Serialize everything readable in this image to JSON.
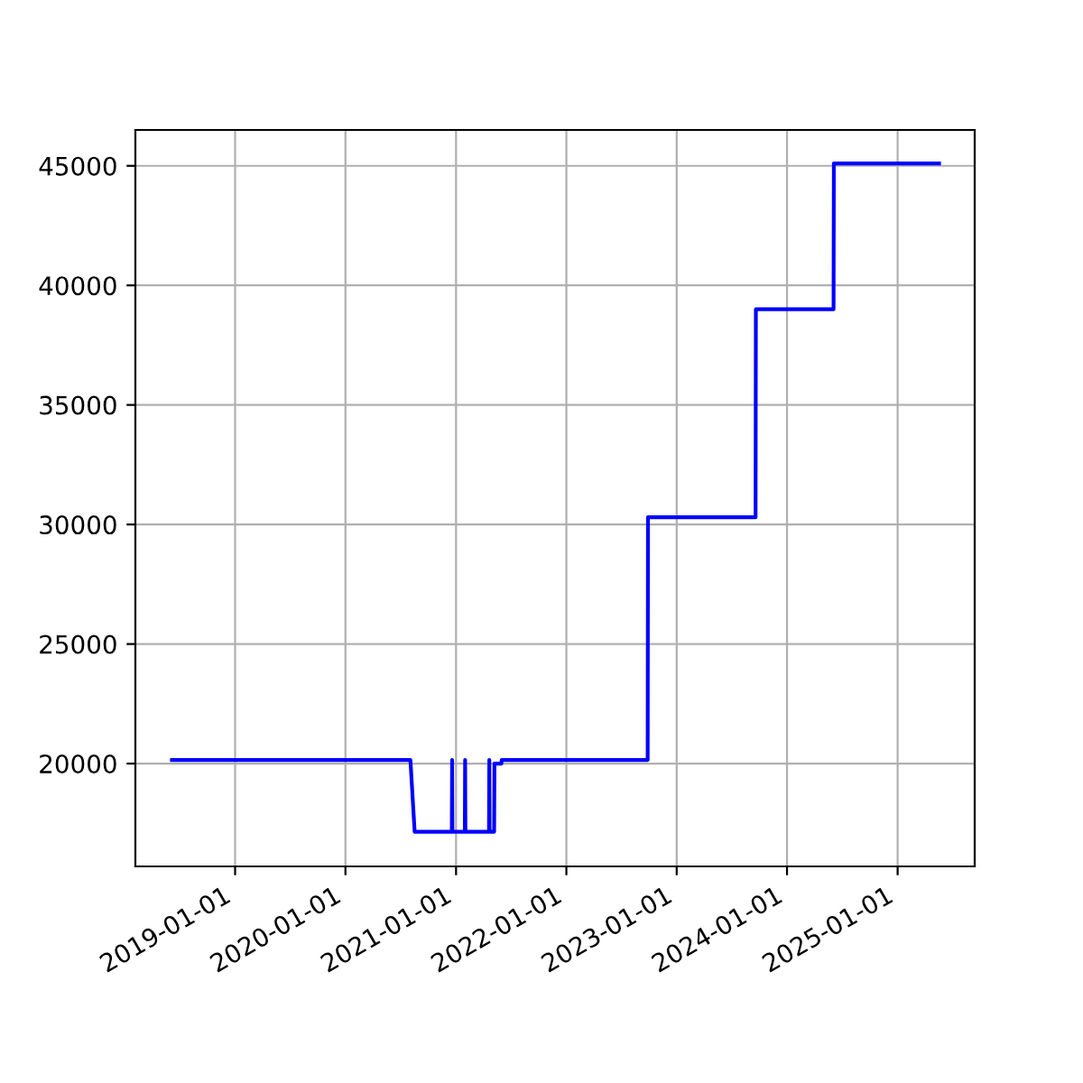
{
  "chart_data": {
    "type": "line",
    "x": [
      "2018-06-06",
      "2020-08-03",
      "2020-08-17",
      "2020-12-18",
      "2020-12-19",
      "2020-12-20",
      "2021-01-30",
      "2021-01-31",
      "2021-02-01",
      "2021-04-20",
      "2021-04-21",
      "2021-04-22",
      "2021-05-07",
      "2021-05-08",
      "2021-05-31",
      "2021-06-01",
      "2022-09-27",
      "2022-09-28",
      "2023-09-19",
      "2023-09-20",
      "2024-06-03",
      "2024-06-04",
      "2025-05-18"
    ],
    "series": [
      {
        "color": "#0000ff",
        "values": [
          20150,
          20150,
          17150,
          17150,
          20150,
          17150,
          17150,
          20150,
          17150,
          17150,
          20150,
          17150,
          17150,
          20000,
          20000,
          20150,
          20150,
          30300,
          30300,
          39000,
          39000,
          45100,
          45100
        ]
      }
    ],
    "xlim": [
      "2018-02-05",
      "2025-09-13"
    ],
    "ylim": [
      15700,
      46500
    ],
    "xticks": [
      "2019-01-01",
      "2020-01-01",
      "2021-01-01",
      "2022-01-01",
      "2023-01-01",
      "2024-01-01",
      "2025-01-01"
    ],
    "yticks": [
      20000,
      25000,
      30000,
      35000,
      40000,
      45000
    ],
    "grid": true,
    "marker": "none",
    "line_style": "solid"
  }
}
